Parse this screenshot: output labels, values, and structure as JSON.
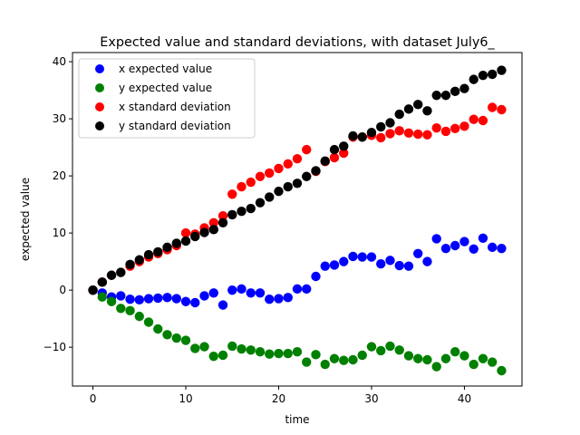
{
  "chart_data": {
    "type": "scatter",
    "title": "Expected value and standard deviations, with dataset July6_",
    "xlabel": "time",
    "ylabel": "expected value",
    "xlim": [
      -2.2,
      46.2
    ],
    "ylim": [
      -16.8,
      41.6
    ],
    "xticks": [
      0,
      10,
      20,
      30,
      40
    ],
    "yticks": [
      -10,
      0,
      10,
      20,
      30,
      40
    ],
    "grid": false,
    "legend_position": "top-left",
    "series": [
      {
        "name": "x expected value",
        "color": "#0000ff",
        "x": [
          0,
          1,
          2,
          3,
          4,
          5,
          6,
          7,
          8,
          9,
          10,
          11,
          12,
          13,
          14,
          15,
          16,
          17,
          18,
          19,
          20,
          21,
          22,
          23,
          24,
          25,
          26,
          27,
          28,
          29,
          30,
          31,
          32,
          33,
          34,
          35,
          36,
          37,
          38,
          39,
          40,
          41,
          42,
          43,
          44
        ],
        "y": [
          0,
          -0.5,
          -1.2,
          -1.0,
          -1.6,
          -1.7,
          -1.5,
          -1.4,
          -1.3,
          -1.5,
          -2.0,
          -2.2,
          -1.0,
          -0.5,
          -2.6,
          0.0,
          0.2,
          -0.5,
          -0.5,
          -1.6,
          -1.5,
          -1.3,
          0.2,
          0.2,
          2.4,
          4.2,
          4.4,
          5.0,
          5.9,
          5.8,
          5.8,
          4.6,
          5.2,
          4.3,
          4.2,
          6.4,
          5.0,
          9.0,
          7.3,
          7.8,
          8.5,
          7.2,
          9.1,
          7.5,
          7.3
        ]
      },
      {
        "name": "y expected value",
        "color": "#008000",
        "x": [
          0,
          1,
          2,
          3,
          4,
          5,
          6,
          7,
          8,
          9,
          10,
          11,
          12,
          13,
          14,
          15,
          16,
          17,
          18,
          19,
          20,
          21,
          22,
          23,
          24,
          25,
          26,
          27,
          28,
          29,
          30,
          31,
          32,
          33,
          34,
          35,
          36,
          37,
          38,
          39,
          40,
          41,
          42,
          43,
          44
        ],
        "y": [
          0,
          -1.2,
          -2.0,
          -3.2,
          -3.6,
          -4.6,
          -5.6,
          -6.8,
          -7.8,
          -8.4,
          -8.8,
          -10.2,
          -9.9,
          -11.6,
          -11.4,
          -9.8,
          -10.3,
          -10.5,
          -10.8,
          -11.2,
          -11.1,
          -11.1,
          -10.8,
          -12.6,
          -11.3,
          -13.0,
          -12.0,
          -12.3,
          -12.2,
          -11.4,
          -9.9,
          -10.6,
          -9.8,
          -10.5,
          -11.5,
          -12.0,
          -12.2,
          -13.4,
          -12.0,
          -10.8,
          -11.5,
          -13.0,
          -12.0,
          -12.6,
          -14.1
        ]
      },
      {
        "name": "x standard deviation",
        "color": "#ff0000",
        "x": [
          0,
          1,
          2,
          3,
          4,
          5,
          6,
          7,
          8,
          9,
          10,
          11,
          12,
          13,
          14,
          15,
          16,
          17,
          18,
          19,
          20,
          21,
          22,
          23,
          24,
          25,
          26,
          27,
          28,
          29,
          30,
          31,
          32,
          33,
          34,
          35,
          36,
          37,
          38,
          39,
          40,
          41,
          42,
          43,
          44
        ],
        "y": [
          0,
          1.4,
          2.6,
          3.1,
          4.2,
          5.0,
          5.8,
          6.4,
          7.1,
          7.8,
          10.0,
          9.8,
          10.9,
          11.8,
          13.0,
          16.8,
          18.1,
          18.9,
          19.9,
          20.5,
          21.3,
          22.1,
          23.0,
          24.6,
          20.8,
          22.5,
          23.2,
          24.0,
          26.8,
          26.8,
          27.1,
          26.7,
          27.4,
          27.9,
          27.5,
          27.3,
          27.2,
          28.4,
          27.8,
          28.3,
          28.7,
          29.9,
          29.7,
          32.0,
          31.6
        ]
      },
      {
        "name": "y standard deviation",
        "color": "#000000",
        "x": [
          0,
          1,
          2,
          3,
          4,
          5,
          6,
          7,
          8,
          9,
          10,
          11,
          12,
          13,
          14,
          15,
          16,
          17,
          18,
          19,
          20,
          21,
          22,
          23,
          24,
          25,
          26,
          27,
          28,
          29,
          30,
          31,
          32,
          33,
          34,
          35,
          36,
          37,
          38,
          39,
          40,
          41,
          42,
          43,
          44
        ],
        "y": [
          0,
          1.4,
          2.6,
          3.1,
          4.5,
          5.3,
          6.2,
          6.7,
          7.5,
          8.2,
          8.6,
          9.4,
          10.1,
          10.6,
          11.8,
          13.2,
          13.8,
          14.3,
          15.3,
          16.3,
          17.3,
          18.1,
          18.7,
          19.9,
          20.9,
          22.6,
          24.6,
          25.2,
          27.0,
          26.8,
          27.6,
          28.6,
          29.3,
          30.8,
          31.7,
          32.5,
          31.4,
          34.1,
          34.1,
          34.8,
          35.3,
          36.9,
          37.6,
          37.8,
          38.5
        ]
      }
    ]
  }
}
